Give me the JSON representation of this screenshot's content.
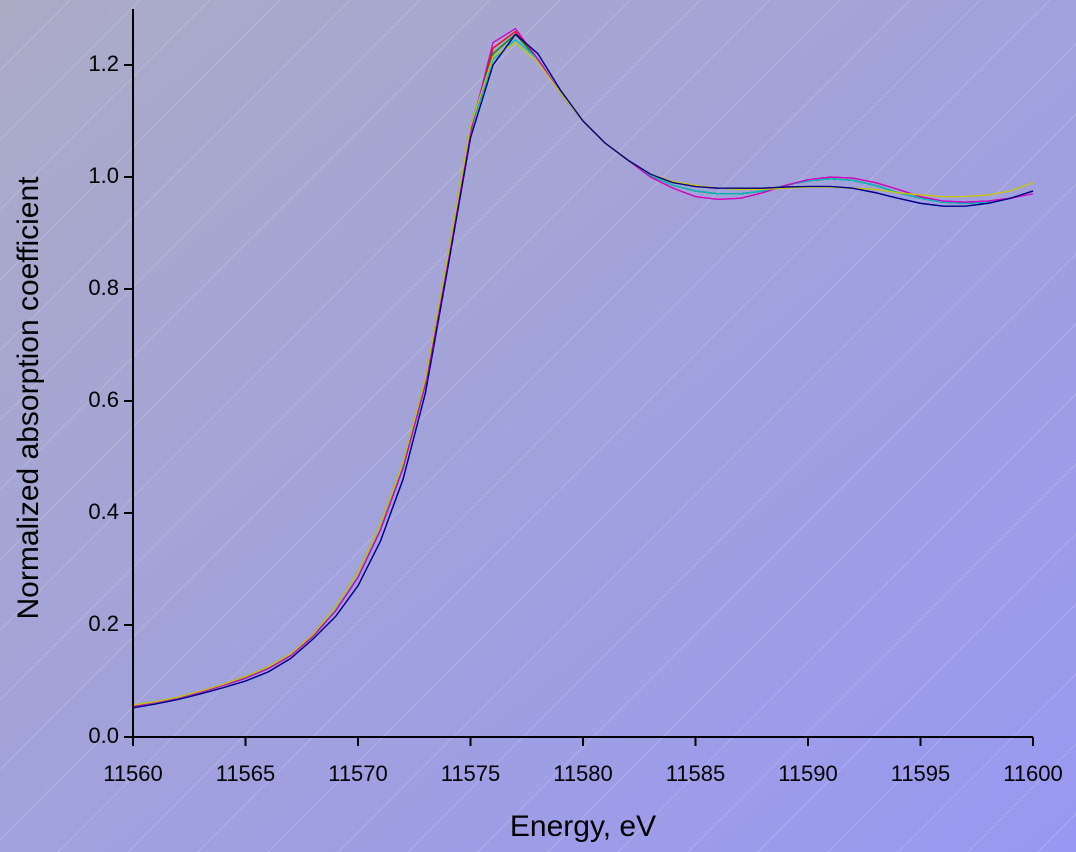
{
  "chart_data": {
    "type": "line",
    "x_label": "Energy, eV",
    "y_label": "Normalized absorption coefficient",
    "xlim": [
      11560,
      11600
    ],
    "xticks": [
      11560,
      11565,
      11570,
      11575,
      11580,
      11585,
      11590,
      11595,
      11600
    ],
    "ylim": [
      0,
      1.3
    ],
    "yticks": [
      {
        "value": 0,
        "label": "0.0"
      },
      0.2,
      0.4,
      0.6,
      0.8,
      {
        "value": 1,
        "label": "1.0"
      },
      1.2
    ],
    "x": [
      11560,
      11561,
      11562,
      11563,
      11564,
      11565,
      11566,
      11567,
      11568,
      11569,
      11570,
      11571,
      11572,
      11573,
      11574,
      11575,
      11576,
      11577,
      11578,
      11579,
      11580,
      11581,
      11582,
      11583,
      11584,
      11585,
      11586,
      11587,
      11588,
      11589,
      11590,
      11591,
      11592,
      11593,
      11594,
      11595,
      11596,
      11597,
      11598,
      11599,
      11600
    ],
    "series": [
      {
        "color": "#000000",
        "values": [
          0.055,
          0.062,
          0.07,
          0.08,
          0.092,
          0.105,
          0.122,
          0.145,
          0.18,
          0.225,
          0.285,
          0.37,
          0.48,
          0.63,
          0.85,
          1.08,
          1.22,
          1.255,
          1.21,
          1.15,
          1.1,
          1.06,
          1.03,
          1.003,
          0.985,
          0.975,
          0.97,
          0.97,
          0.975,
          0.985,
          0.993,
          0.997,
          0.994,
          0.985,
          0.972,
          0.962,
          0.955,
          0.953,
          0.955,
          0.962,
          0.975
        ]
      },
      {
        "color": "#ff0000",
        "values": [
          0.055,
          0.062,
          0.07,
          0.08,
          0.092,
          0.105,
          0.122,
          0.145,
          0.18,
          0.225,
          0.285,
          0.37,
          0.48,
          0.63,
          0.85,
          1.08,
          1.23,
          1.26,
          1.21,
          1.15,
          1.1,
          1.06,
          1.03,
          1.0,
          0.98,
          0.965,
          0.96,
          0.962,
          0.972,
          0.985,
          0.995,
          1.0,
          0.998,
          0.99,
          0.978,
          0.965,
          0.957,
          0.955,
          0.957,
          0.962,
          0.975
        ]
      },
      {
        "color": "#00a000",
        "values": [
          0.057,
          0.063,
          0.071,
          0.082,
          0.094,
          0.108,
          0.125,
          0.148,
          0.183,
          0.232,
          0.295,
          0.38,
          0.49,
          0.64,
          0.86,
          1.09,
          1.22,
          1.255,
          1.21,
          1.15,
          1.1,
          1.06,
          1.03,
          1.003,
          0.985,
          0.975,
          0.97,
          0.97,
          0.975,
          0.985,
          0.993,
          0.997,
          0.994,
          0.985,
          0.972,
          0.962,
          0.955,
          0.953,
          0.955,
          0.962,
          0.975
        ]
      },
      {
        "color": "#0000ff",
        "values": [
          0.052,
          0.059,
          0.067,
          0.077,
          0.088,
          0.1,
          0.116,
          0.14,
          0.175,
          0.215,
          0.27,
          0.35,
          0.46,
          0.615,
          0.84,
          1.07,
          1.2,
          1.255,
          1.22,
          1.155,
          1.1,
          1.06,
          1.03,
          1.005,
          0.99,
          0.983,
          0.98,
          0.98,
          0.98,
          0.982,
          0.983,
          0.983,
          0.98,
          0.972,
          0.962,
          0.953,
          0.948,
          0.948,
          0.953,
          0.962,
          0.975
        ]
      },
      {
        "color": "#00c0c0",
        "values": [
          0.055,
          0.062,
          0.07,
          0.08,
          0.092,
          0.105,
          0.122,
          0.145,
          0.18,
          0.225,
          0.285,
          0.37,
          0.48,
          0.63,
          0.85,
          1.08,
          1.21,
          1.245,
          1.21,
          1.15,
          1.1,
          1.06,
          1.03,
          1.003,
          0.985,
          0.975,
          0.97,
          0.97,
          0.975,
          0.985,
          0.993,
          0.997,
          0.994,
          0.985,
          0.972,
          0.962,
          0.955,
          0.953,
          0.955,
          0.962,
          0.975
        ]
      },
      {
        "color": "#d000d0",
        "values": [
          0.055,
          0.062,
          0.07,
          0.08,
          0.092,
          0.105,
          0.122,
          0.145,
          0.18,
          0.225,
          0.285,
          0.37,
          0.48,
          0.63,
          0.85,
          1.08,
          1.24,
          1.265,
          1.21,
          1.15,
          1.1,
          1.06,
          1.03,
          1.0,
          0.98,
          0.965,
          0.96,
          0.962,
          0.972,
          0.985,
          0.995,
          1.0,
          0.998,
          0.99,
          0.978,
          0.965,
          0.957,
          0.955,
          0.957,
          0.962,
          0.97
        ]
      },
      {
        "color": "#c8c800",
        "values": [
          0.057,
          0.063,
          0.071,
          0.082,
          0.094,
          0.108,
          0.125,
          0.148,
          0.183,
          0.232,
          0.295,
          0.38,
          0.49,
          0.64,
          0.86,
          1.09,
          1.215,
          1.24,
          1.205,
          1.15,
          1.1,
          1.06,
          1.03,
          1.005,
          0.992,
          0.985,
          0.98,
          0.978,
          0.978,
          0.98,
          0.982,
          0.982,
          0.98,
          0.978,
          0.972,
          0.968,
          0.965,
          0.965,
          0.968,
          0.975,
          0.99
        ]
      },
      {
        "color": "#000080",
        "values": [
          0.052,
          0.059,
          0.067,
          0.077,
          0.088,
          0.1,
          0.116,
          0.14,
          0.175,
          0.215,
          0.27,
          0.35,
          0.46,
          0.615,
          0.84,
          1.07,
          1.2,
          1.255,
          1.22,
          1.155,
          1.1,
          1.06,
          1.03,
          1.005,
          0.99,
          0.983,
          0.98,
          0.98,
          0.98,
          0.982,
          0.983,
          0.983,
          0.98,
          0.972,
          0.962,
          0.953,
          0.948,
          0.948,
          0.953,
          0.962,
          0.975
        ]
      }
    ]
  }
}
